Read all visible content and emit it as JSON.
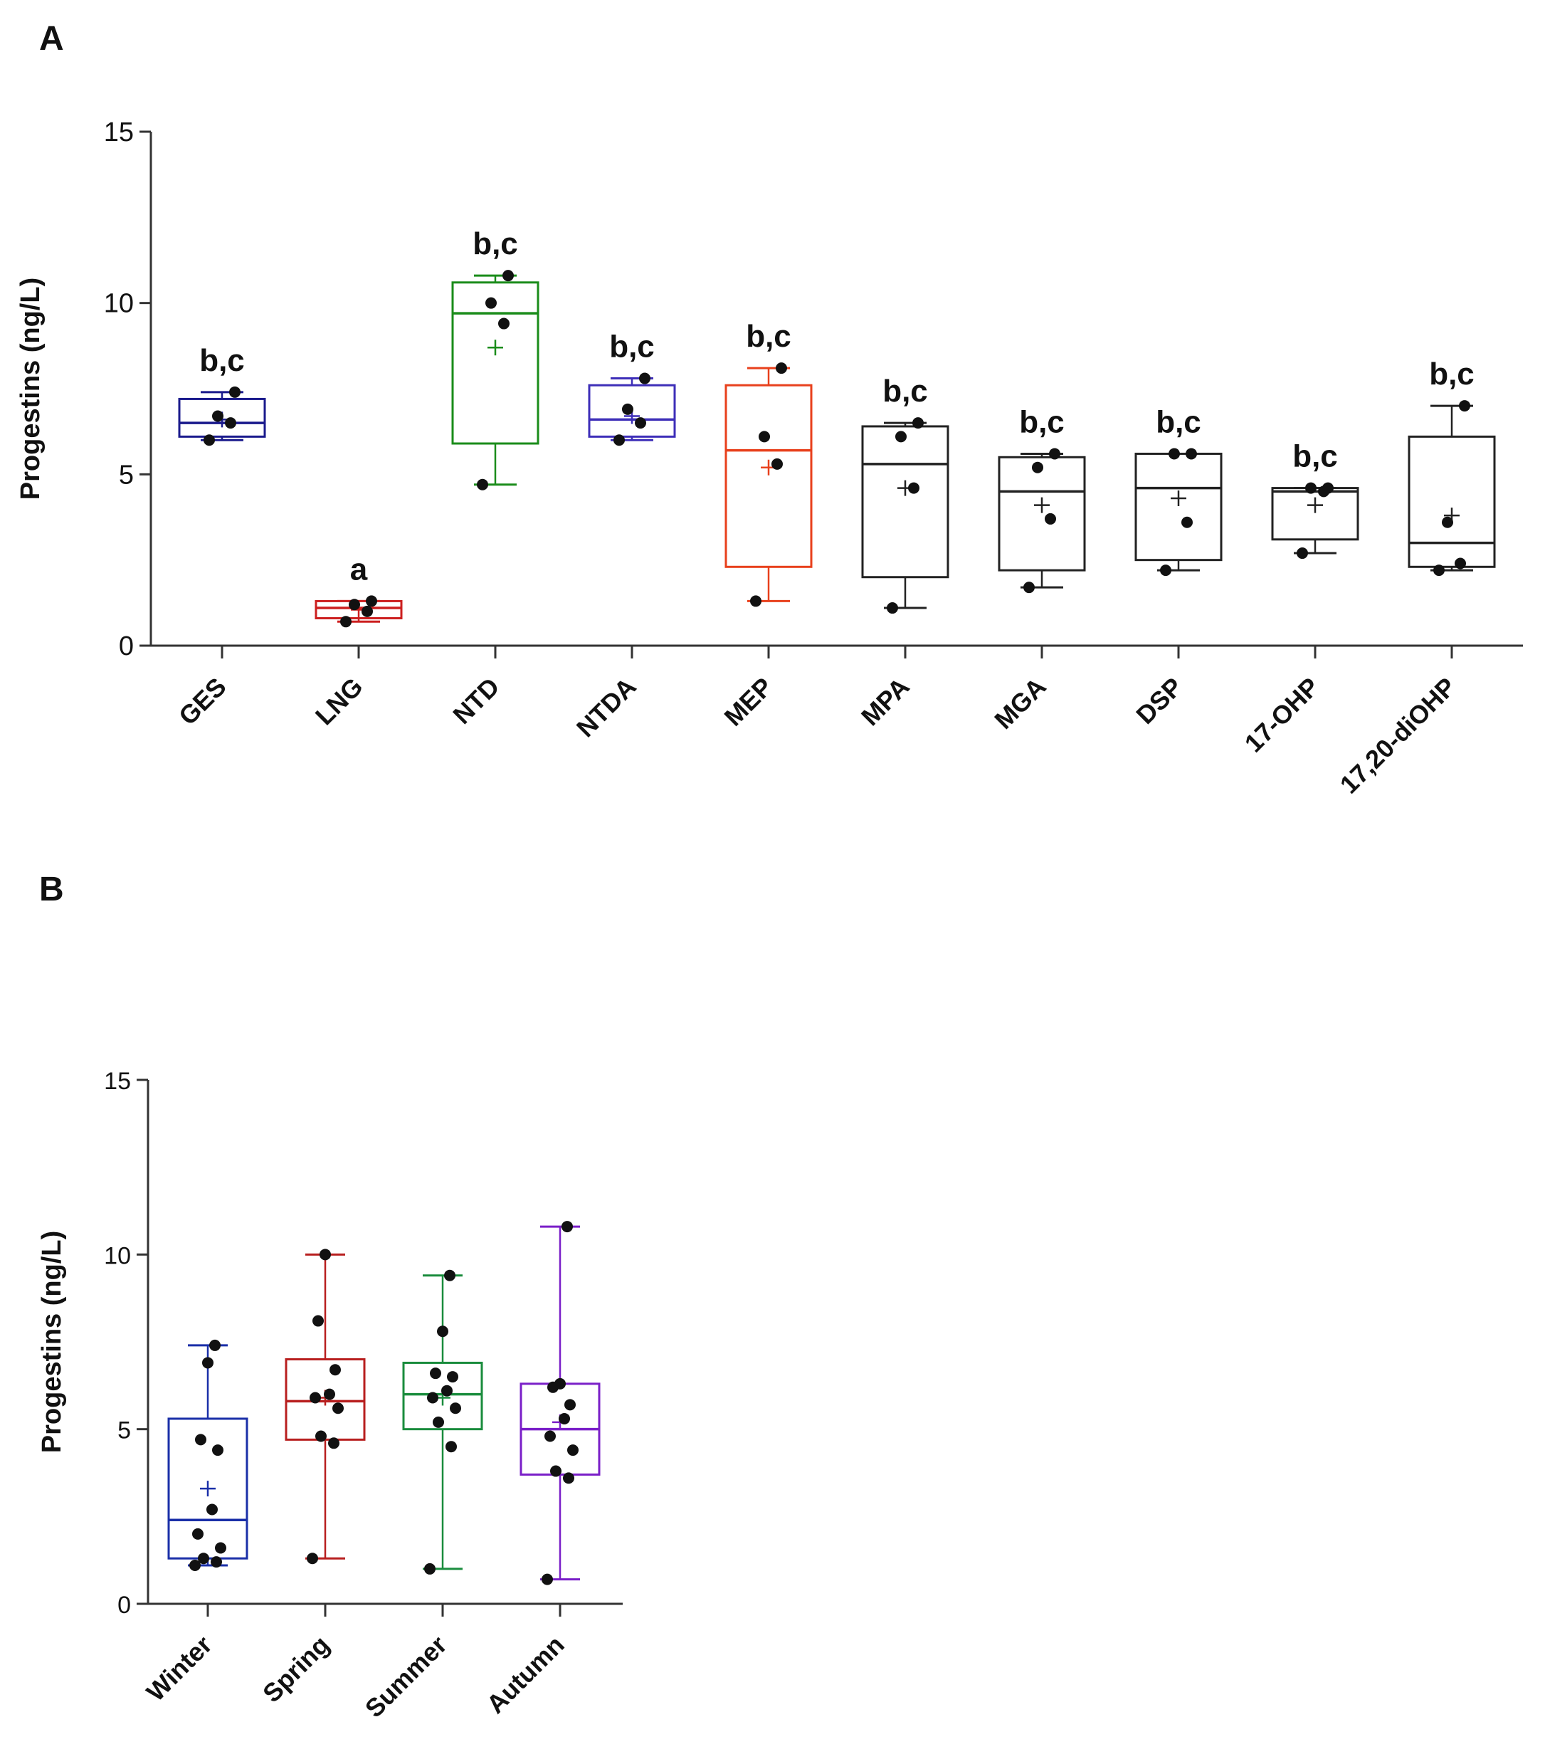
{
  "chart_data": [
    {
      "panel": "A",
      "type": "box",
      "ylabel": "Progestins (ng/L)",
      "ylim": [
        0,
        15
      ],
      "yticks": [
        0,
        5,
        10,
        15
      ],
      "categories": [
        "GES",
        "LNG",
        "NTD",
        "NTDA",
        "MEP",
        "MPA",
        "MGA",
        "DSP",
        "17-OHP",
        "17,20-diOHP"
      ],
      "boxes": [
        {
          "name": "GES",
          "color": "#1a1a8c",
          "min": 6.0,
          "q1": 6.1,
          "median": 6.5,
          "q3": 7.2,
          "max": 7.4,
          "mean": 6.6,
          "points": [
            6.0,
            6.5,
            6.7,
            7.4
          ],
          "letters": "b,c"
        },
        {
          "name": "LNG",
          "color": "#cc1f1f",
          "min": 0.7,
          "q1": 0.8,
          "median": 1.1,
          "q3": 1.3,
          "max": 1.3,
          "mean": 1.05,
          "points": [
            0.7,
            1.0,
            1.2,
            1.3
          ],
          "letters": "a"
        },
        {
          "name": "NTD",
          "color": "#1a8c1a",
          "min": 4.7,
          "q1": 5.9,
          "median": 9.7,
          "q3": 10.6,
          "max": 10.8,
          "mean": 8.7,
          "points": [
            4.7,
            9.4,
            10.0,
            10.8
          ],
          "letters": "b,c"
        },
        {
          "name": "NTDA",
          "color": "#3d2eb8",
          "min": 6.0,
          "q1": 6.1,
          "median": 6.6,
          "q3": 7.6,
          "max": 7.8,
          "mean": 6.7,
          "points": [
            6.0,
            6.5,
            6.9,
            7.8
          ],
          "letters": "b,c"
        },
        {
          "name": "MEP",
          "color": "#e8401c",
          "min": 1.3,
          "q1": 2.3,
          "median": 5.7,
          "q3": 7.6,
          "max": 8.1,
          "mean": 5.2,
          "points": [
            1.3,
            5.3,
            6.1,
            8.1
          ],
          "letters": "b,c"
        },
        {
          "name": "MPA",
          "color": "#222222",
          "min": 1.1,
          "q1": 2.0,
          "median": 5.3,
          "q3": 6.4,
          "max": 6.5,
          "mean": 4.6,
          "points": [
            1.1,
            4.6,
            6.1,
            6.5
          ],
          "letters": "b,c"
        },
        {
          "name": "MGA",
          "color": "#222222",
          "min": 1.7,
          "q1": 2.2,
          "median": 4.5,
          "q3": 5.5,
          "max": 5.6,
          "mean": 4.1,
          "points": [
            1.7,
            3.7,
            5.2,
            5.6
          ],
          "letters": "b,c"
        },
        {
          "name": "DSP",
          "color": "#222222",
          "min": 2.2,
          "q1": 2.5,
          "median": 4.6,
          "q3": 5.6,
          "max": 5.6,
          "mean": 4.3,
          "points": [
            2.2,
            3.6,
            5.6,
            5.6
          ],
          "letters": "b,c"
        },
        {
          "name": "17-OHP",
          "color": "#222222",
          "min": 2.7,
          "q1": 3.1,
          "median": 4.5,
          "q3": 4.6,
          "max": 4.6,
          "mean": 4.1,
          "points": [
            2.7,
            4.5,
            4.6,
            4.6
          ],
          "letters": "b,c"
        },
        {
          "name": "17,20-diOHP",
          "color": "#222222",
          "min": 2.2,
          "q1": 2.3,
          "median": 3.0,
          "q3": 6.1,
          "max": 7.0,
          "mean": 3.8,
          "points": [
            2.2,
            2.4,
            3.6,
            7.0
          ],
          "letters": "b,c"
        }
      ]
    },
    {
      "panel": "B",
      "type": "box",
      "ylabel": "Progestins (ng/L)",
      "ylim": [
        0,
        15
      ],
      "yticks": [
        0,
        5,
        10,
        15
      ],
      "categories": [
        "Winter",
        "Spring",
        "Summer",
        "Autumn"
      ],
      "boxes": [
        {
          "name": "Winter",
          "color": "#1a2fa8",
          "min": 1.1,
          "q1": 1.3,
          "median": 2.4,
          "q3": 5.3,
          "max": 7.4,
          "mean": 3.3,
          "points": [
            1.1,
            1.2,
            1.3,
            1.6,
            2.0,
            2.7,
            4.4,
            4.7,
            6.9,
            7.4
          ]
        },
        {
          "name": "Spring",
          "color": "#b81f1f",
          "min": 1.3,
          "q1": 4.7,
          "median": 5.8,
          "q3": 7.0,
          "max": 10.0,
          "mean": 5.9,
          "points": [
            1.3,
            4.6,
            4.8,
            5.6,
            5.9,
            6.0,
            6.7,
            8.1,
            10.0
          ]
        },
        {
          "name": "Summer",
          "color": "#1a8c3d",
          "min": 1.0,
          "q1": 5.0,
          "median": 6.0,
          "q3": 6.9,
          "max": 9.4,
          "mean": 5.9,
          "points": [
            1.0,
            4.5,
            5.2,
            5.6,
            5.9,
            6.1,
            6.5,
            6.6,
            7.8,
            9.4
          ]
        },
        {
          "name": "Autumn",
          "color": "#7a1fc8",
          "min": 0.7,
          "q1": 3.7,
          "median": 5.0,
          "q3": 6.3,
          "max": 10.8,
          "mean": 5.2,
          "points": [
            0.7,
            3.6,
            3.8,
            4.4,
            4.8,
            5.3,
            5.7,
            6.2,
            6.3,
            10.8
          ]
        }
      ]
    }
  ],
  "panels": {
    "a_letter": "A",
    "b_letter": "B"
  }
}
